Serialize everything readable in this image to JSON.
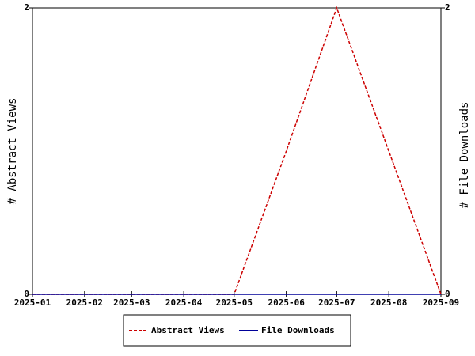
{
  "chart_data": {
    "type": "line",
    "x": [
      "2025-01",
      "2025-02",
      "2025-03",
      "2025-04",
      "2025-05",
      "2025-06",
      "2025-07",
      "2025-08",
      "2025-09"
    ],
    "xlim": [
      "2025-01",
      "2025-09"
    ],
    "y_label": "# Abstract Views",
    "y2_label": "# File Downloads",
    "ylim": [
      0,
      2
    ],
    "yticks": [
      0,
      2
    ],
    "y2lim": [
      0,
      2
    ],
    "y2ticks": [
      0,
      2
    ],
    "series": [
      {
        "name": "Abstract Views",
        "color": "#cc0000",
        "dashed": true,
        "values": [
          0,
          0,
          0,
          0,
          0,
          1,
          2,
          1,
          0
        ]
      },
      {
        "name": "File Downloads",
        "color": "#000099",
        "axis": "y2",
        "values": [
          0,
          0,
          0,
          0,
          0,
          0,
          0,
          0,
          0
        ]
      }
    ],
    "legend": "bottom"
  }
}
